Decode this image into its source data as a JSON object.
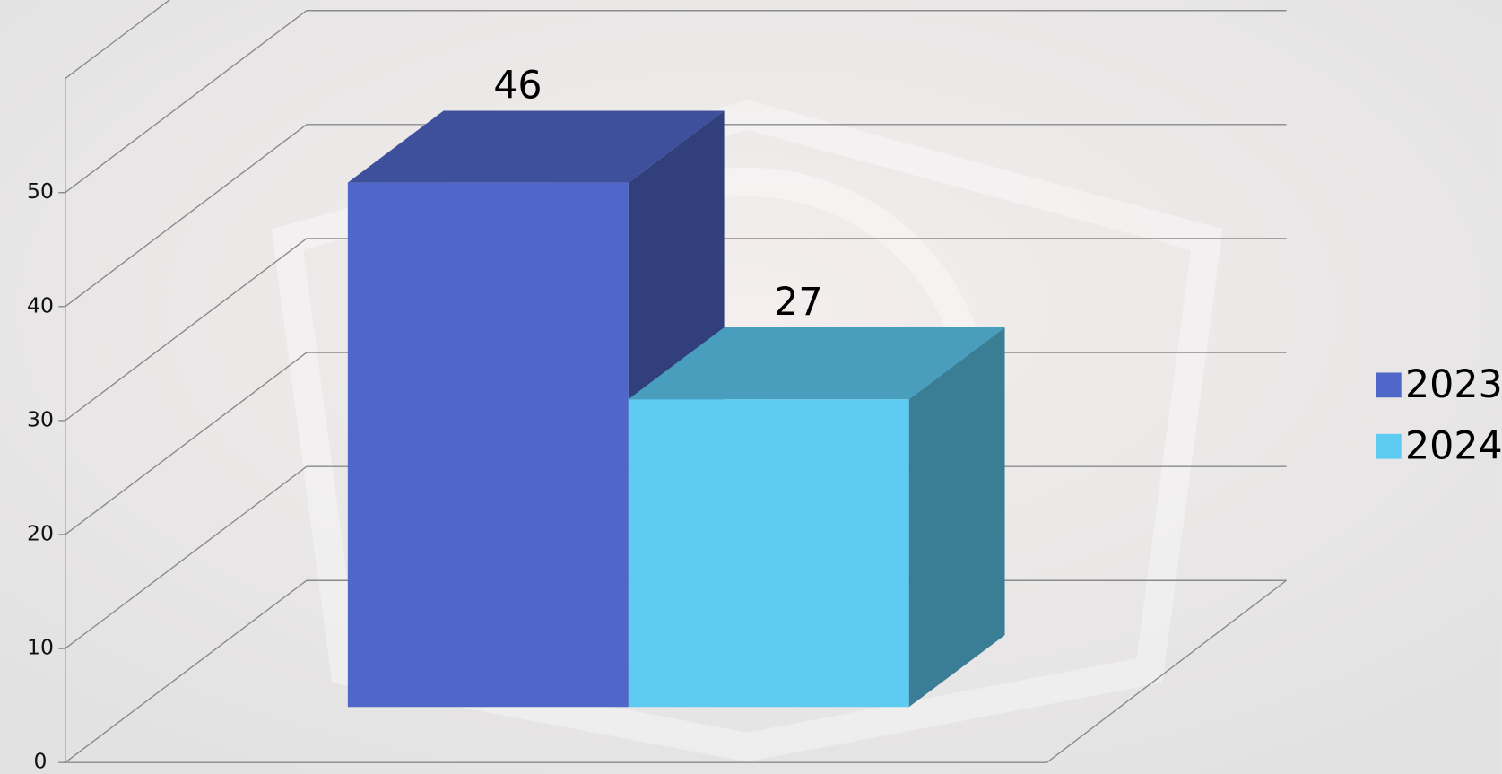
{
  "chart_data": {
    "type": "bar",
    "categories": [
      null
    ],
    "series": [
      {
        "name": "2023",
        "color": "#4f67c8",
        "values": [
          46
        ]
      },
      {
        "name": "2024",
        "color": "#5ecbf2",
        "values": [
          27
        ]
      }
    ],
    "ylim": [
      0,
      60
    ],
    "yticks": [
      0,
      10,
      20,
      30,
      40,
      50
    ],
    "grid": true,
    "legend": "right"
  }
}
